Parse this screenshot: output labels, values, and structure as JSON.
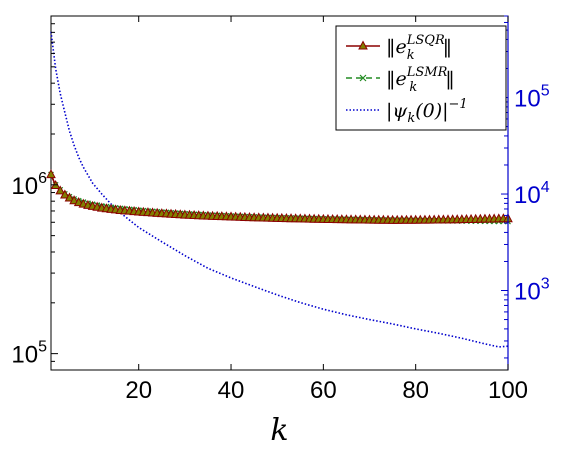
{
  "colors": {
    "lsqr": "#8b0000",
    "lsmr": "#228b22",
    "psi": "#0000cd",
    "right_axis": "#0000cd",
    "left_axis": "#000000",
    "marker_face": "#808000"
  },
  "chart_data": {
    "type": "line",
    "xlabel": "k",
    "xlim": [
      1,
      100
    ],
    "x_ticks": [
      20,
      40,
      60,
      80,
      100
    ],
    "x_tick_labels": [
      "20",
      "40",
      "60",
      "80",
      "100"
    ],
    "left_axis": {
      "scale": "log",
      "ylim": [
        80000,
        10000000
      ],
      "ticks": [
        100000,
        1000000
      ],
      "tick_labels": [
        {
          "base": "10",
          "exp": "5"
        },
        {
          "base": "10",
          "exp": "6"
        }
      ]
    },
    "right_axis": {
      "scale": "log",
      "ylim": [
        150,
        700000
      ],
      "ticks": [
        1000,
        10000,
        100000
      ],
      "tick_labels": [
        {
          "base": "10",
          "exp": "3"
        },
        {
          "base": "10",
          "exp": "4"
        },
        {
          "base": "10",
          "exp": "5"
        }
      ]
    },
    "legend": {
      "placement": "top-right",
      "entries": [
        {
          "series": "lsqr",
          "label": "‖e",
          "sub": "k",
          "sup": "LSQR",
          "tail": "‖"
        },
        {
          "series": "lsmr",
          "label": "‖e",
          "sub": "k",
          "sup": "LSMR",
          "tail": "‖"
        },
        {
          "series": "psi",
          "label": "|ψ",
          "sub": "k",
          "mid": "(0)|",
          "sup": "−1",
          "tail": ""
        }
      ]
    },
    "series": [
      {
        "id": "lsqr",
        "axis": "left",
        "style": "solid",
        "marker": "triangle",
        "x": [
          1,
          2,
          3,
          4,
          5,
          6,
          7,
          8,
          9,
          10,
          12,
          14,
          16,
          18,
          20,
          25,
          30,
          35,
          40,
          45,
          50,
          55,
          60,
          65,
          70,
          75,
          80,
          85,
          90,
          95,
          100
        ],
        "y": [
          1150000,
          990000,
          920000,
          870000,
          835000,
          805000,
          785000,
          768000,
          755000,
          745000,
          728000,
          715000,
          705000,
          698000,
          690000,
          675000,
          662000,
          652000,
          645000,
          638000,
          633000,
          628000,
          624000,
          621000,
          618000,
          616000,
          617000,
          619000,
          622000,
          626000,
          630000
        ]
      },
      {
        "id": "lsmr",
        "axis": "left",
        "style": "dashed",
        "marker": "x",
        "x": [
          1,
          2,
          3,
          4,
          5,
          6,
          7,
          8,
          9,
          10,
          12,
          14,
          16,
          18,
          20,
          25,
          30,
          35,
          40,
          45,
          50,
          55,
          60,
          65,
          70,
          75,
          80,
          85,
          90,
          95,
          100
        ],
        "y": [
          1150000,
          1000000,
          935000,
          885000,
          850000,
          825000,
          805000,
          790000,
          778000,
          768000,
          750000,
          737000,
          726000,
          716000,
          708000,
          690000,
          675000,
          663000,
          654000,
          646000,
          640000,
          634000,
          629000,
          625000,
          621000,
          618000,
          615000,
          612000,
          610000,
          608000,
          606000
        ]
      },
      {
        "id": "psi",
        "axis": "right",
        "style": "dotted",
        "marker": "none",
        "x": [
          1,
          2,
          3,
          4,
          5,
          6,
          7,
          8,
          10,
          12,
          15,
          20,
          25,
          30,
          35,
          40,
          45,
          50,
          55,
          60,
          65,
          70,
          75,
          80,
          85,
          90,
          95,
          98,
          100
        ],
        "y": [
          480000,
          200000,
          110000,
          70000,
          45000,
          32000,
          24000,
          19000,
          13000,
          10000,
          7000,
          4500,
          3200,
          2300,
          1700,
          1350,
          1100,
          900,
          750,
          640,
          560,
          500,
          450,
          400,
          360,
          320,
          280,
          260,
          265
        ]
      }
    ]
  }
}
